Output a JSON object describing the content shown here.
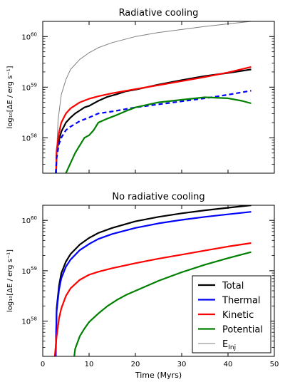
{
  "chart_data": [
    {
      "type": "line",
      "title": "Radiative cooling",
      "xlabel": "",
      "ylabel": "log₁₀[ΔE / erg s⁻¹]",
      "xlim": [
        0,
        50
      ],
      "ylim": [
        57.3,
        60.3
      ],
      "yscale": "log",
      "x_ticks": [
        0,
        10,
        20,
        30,
        40,
        50
      ],
      "x_tick_labels": [
        "",
        "",
        "",
        "",
        "",
        ""
      ],
      "y_ticks": [
        58,
        59,
        60
      ],
      "y_tick_labels": [
        [
          "10",
          "58"
        ],
        [
          "10",
          "59"
        ],
        [
          "10",
          "60"
        ]
      ],
      "grid": false,
      "series": [
        {
          "name": "E_Inj",
          "color": "#808080",
          "style": "solid",
          "x": [
            3,
            3.3,
            4,
            5,
            6,
            8,
            10,
            12,
            15,
            20,
            25,
            30,
            35,
            40,
            45
          ],
          "y": [
            57.7,
            58.35,
            58.85,
            59.15,
            59.35,
            59.55,
            59.68,
            59.78,
            59.88,
            60.0,
            60.08,
            60.14,
            60.2,
            60.25,
            60.3
          ]
        },
        {
          "name": "Total",
          "color": "#000000",
          "style": "solid",
          "x": [
            2.9,
            3,
            3.5,
            4,
            5,
            6,
            7,
            8,
            9,
            10,
            12,
            14,
            16,
            18,
            20,
            25,
            30,
            35,
            40,
            45
          ],
          "y": [
            57.3,
            57.72,
            57.95,
            58.12,
            58.3,
            58.4,
            58.48,
            58.54,
            58.6,
            58.63,
            58.73,
            58.81,
            58.86,
            58.92,
            58.95,
            59.05,
            59.14,
            59.22,
            59.28,
            59.35
          ]
        },
        {
          "name": "Kinetic",
          "color": "#ff0000",
          "style": "solid",
          "x": [
            2.9,
            3,
            3.5,
            4,
            5,
            6,
            8,
            10,
            12,
            15,
            20,
            25,
            30,
            35,
            40,
            45
          ],
          "y": [
            57.3,
            57.75,
            58.1,
            58.3,
            58.48,
            58.58,
            58.7,
            58.77,
            58.82,
            58.88,
            58.96,
            59.04,
            59.12,
            59.2,
            59.29,
            59.4
          ]
        },
        {
          "name": "Thermal",
          "color": "#0000ff",
          "style": "dashed",
          "x": [
            2.8,
            3,
            3.5,
            4,
            5,
            6,
            8,
            10,
            12,
            15,
            20,
            25,
            30,
            35,
            40,
            45
          ],
          "y": [
            57.3,
            57.6,
            57.88,
            58.0,
            58.15,
            58.22,
            58.33,
            58.4,
            58.48,
            58.52,
            58.6,
            58.66,
            58.72,
            58.78,
            58.85,
            58.93
          ]
        },
        {
          "name": "Potential",
          "color": "#008000",
          "style": "solid",
          "x": [
            5,
            6,
            7,
            8,
            9,
            10,
            11,
            12,
            14,
            16,
            18,
            20,
            25,
            30,
            35,
            40,
            43,
            45
          ],
          "y": [
            57.3,
            57.5,
            57.7,
            57.85,
            58.0,
            58.05,
            58.15,
            58.3,
            58.38,
            58.45,
            58.53,
            58.6,
            58.7,
            58.75,
            58.8,
            58.78,
            58.73,
            58.68
          ]
        }
      ]
    },
    {
      "type": "line",
      "title": "No radiative cooling",
      "xlabel": "Time (Myrs)",
      "ylabel": "log₁₀[ΔE / erg s⁻¹]",
      "xlim": [
        0,
        50
      ],
      "ylim": [
        57.3,
        60.3
      ],
      "yscale": "log",
      "x_ticks": [
        0,
        10,
        20,
        30,
        40,
        50
      ],
      "x_tick_labels": [
        "0",
        "10",
        "20",
        "30",
        "40",
        "50"
      ],
      "y_ticks": [
        58,
        59,
        60
      ],
      "y_tick_labels": [
        [
          "10",
          "58"
        ],
        [
          "10",
          "59"
        ],
        [
          "10",
          "60"
        ]
      ],
      "grid": false,
      "legend": {
        "placement": "lower-right",
        "entries": [
          "Total",
          "Thermal",
          "Kinetic",
          "Potential",
          "E_Inj"
        ]
      },
      "series": [
        {
          "name": "Total",
          "color": "#000000",
          "style": "solid",
          "x": [
            2.8,
            3,
            3.5,
            4,
            5,
            6,
            8,
            10,
            12,
            15,
            20,
            25,
            30,
            35,
            40,
            45
          ],
          "y": [
            57.3,
            58.25,
            58.7,
            58.95,
            59.18,
            59.33,
            59.52,
            59.65,
            59.75,
            59.85,
            59.98,
            60.07,
            60.14,
            60.2,
            60.25,
            60.3
          ]
        },
        {
          "name": "Thermal",
          "color": "#0000ff",
          "style": "solid",
          "x": [
            2.8,
            3,
            3.5,
            4,
            5,
            6,
            8,
            10,
            12,
            15,
            20,
            25,
            30,
            35,
            40,
            45
          ],
          "y": [
            57.3,
            58.2,
            58.62,
            58.85,
            59.08,
            59.22,
            59.41,
            59.53,
            59.63,
            59.73,
            59.85,
            59.94,
            60.01,
            60.07,
            60.12,
            60.17
          ]
        },
        {
          "name": "Kinetic",
          "color": "#ff0000",
          "style": "solid",
          "x": [
            2.6,
            3,
            3.5,
            4,
            5,
            6,
            8,
            10,
            12,
            15,
            20,
            25,
            30,
            35,
            40,
            45
          ],
          "y": [
            57.3,
            57.7,
            58.05,
            58.25,
            58.5,
            58.65,
            58.82,
            58.92,
            58.98,
            59.05,
            59.15,
            59.24,
            59.32,
            59.4,
            59.48,
            59.55
          ]
        },
        {
          "name": "Potential",
          "color": "#008000",
          "style": "solid",
          "x": [
            6.8,
            7,
            8,
            9,
            10,
            12,
            14,
            16,
            18,
            20,
            25,
            30,
            35,
            40,
            45
          ],
          "y": [
            57.3,
            57.45,
            57.7,
            57.85,
            57.98,
            58.15,
            58.3,
            58.42,
            58.52,
            58.6,
            58.8,
            58.97,
            59.12,
            59.25,
            59.37
          ]
        },
        {
          "name": "E_Inj",
          "color": "#808080",
          "style": "solid",
          "x": [],
          "y": []
        }
      ]
    }
  ]
}
